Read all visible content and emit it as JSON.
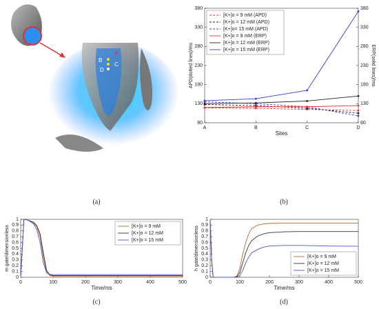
{
  "chart_data": [
    {
      "type": "image",
      "caption": "(a)",
      "labels": [
        "A",
        "B",
        "C",
        "D"
      ]
    },
    {
      "type": "line",
      "caption": "(b)",
      "categories": [
        "A",
        "B",
        "C",
        "D"
      ],
      "xlabel": "Sites",
      "ylabel": "APD(dotted lines)/ms",
      "y2label": "ERP(solid lines)/ms",
      "ylim": [
        80,
        380
      ],
      "yticks": [
        80,
        130,
        180,
        230,
        280,
        330,
        380
      ],
      "y2lim": [
        80,
        380
      ],
      "y2ticks": [
        80,
        130,
        180,
        230,
        280,
        330,
        380
      ],
      "legend": "upper left",
      "series": [
        {
          "name": "[K+]o = 9 mM (APD)",
          "color": "#e83030",
          "dashed": true,
          "values": [
            119,
            118,
            115,
            112
          ]
        },
        {
          "name": "[K+]o = 12 mM (APD)",
          "color": "#222222",
          "dashed": true,
          "values": [
            128,
            125,
            118,
            105
          ]
        },
        {
          "name": "[K+]o= 15 mM (APD)",
          "color": "#3a3ad0",
          "dashed": true,
          "values": [
            135,
            130,
            122,
            98
          ]
        },
        {
          "name": "[K+]o = 9 mM (ERP)",
          "color": "#e83030",
          "dashed": false,
          "axis": "y2",
          "values": [
            120,
            122,
            122,
            125
          ]
        },
        {
          "name": "[K+]o = 12 mM (ERP)",
          "color": "#222222",
          "dashed": false,
          "axis": "y2",
          "values": [
            130,
            132,
            137,
            150
          ]
        },
        {
          "name": "[K+]o = 15 mM (ERP)",
          "color": "#3a3ad0",
          "dashed": false,
          "axis": "y2",
          "values": [
            138,
            143,
            165,
            372
          ]
        }
      ]
    },
    {
      "type": "line",
      "caption": "(c)",
      "xlabel": "Time/ms",
      "ylabel": "m gate/dimensionless",
      "xlim": [
        0,
        500
      ],
      "xticks": [
        0,
        100,
        200,
        300,
        400,
        500
      ],
      "ylim": [
        0,
        1
      ],
      "yticks": [
        0,
        0.1,
        0.2,
        0.3,
        0.4,
        0.5,
        0.6,
        0.7,
        0.8,
        0.9,
        1
      ],
      "legend": "upper right",
      "x": [
        0,
        5,
        10,
        20,
        30,
        40,
        50,
        60,
        70,
        80,
        90,
        100,
        120,
        200,
        300,
        400,
        500
      ],
      "series": [
        {
          "name": "[K+]o = 9 mM",
          "color": "#b8672e",
          "values": [
            0,
            0.5,
            1,
            0.99,
            0.97,
            0.94,
            0.87,
            0.7,
            0.35,
            0.09,
            0.03,
            0.02,
            0.02,
            0.02,
            0.02,
            0.02,
            0.02
          ]
        },
        {
          "name": "[K+]o = 12 mM",
          "color": "#333333",
          "values": [
            0,
            0.5,
            1,
            0.99,
            0.97,
            0.95,
            0.89,
            0.75,
            0.42,
            0.12,
            0.04,
            0.03,
            0.03,
            0.03,
            0.03,
            0.03,
            0.03
          ]
        },
        {
          "name": "[K+]o = 15 mM",
          "color": "#5050d0",
          "values": [
            0,
            0.5,
            1,
            0.99,
            0.96,
            0.92,
            0.82,
            0.6,
            0.25,
            0.08,
            0.05,
            0.045,
            0.045,
            0.045,
            0.045,
            0.045,
            0.045
          ]
        }
      ]
    },
    {
      "type": "line",
      "caption": "(d)",
      "xlabel": "Time/ms",
      "ylabel": "h gate/dimensionless",
      "xlim": [
        0,
        500
      ],
      "xticks": [
        0,
        100,
        200,
        300,
        400,
        500
      ],
      "ylim": [
        0,
        1
      ],
      "yticks": [
        0,
        0.1,
        0.2,
        0.3,
        0.4,
        0.5,
        0.6,
        0.7,
        0.8,
        0.9,
        1
      ],
      "legend": "lower right",
      "x": [
        0,
        5,
        10,
        80,
        90,
        100,
        110,
        120,
        130,
        140,
        160,
        180,
        200,
        250,
        300,
        400,
        500
      ],
      "series": [
        {
          "name": "[K+]o = 9 mM",
          "color": "#b8672e",
          "values": [
            0.98,
            0.3,
            0,
            0,
            0.02,
            0.15,
            0.4,
            0.6,
            0.75,
            0.84,
            0.9,
            0.92,
            0.93,
            0.935,
            0.935,
            0.935,
            0.935
          ]
        },
        {
          "name": "[K+]o = 12 mM",
          "color": "#333333",
          "values": [
            0.98,
            0.3,
            0,
            0,
            0.01,
            0.08,
            0.25,
            0.42,
            0.55,
            0.63,
            0.71,
            0.75,
            0.77,
            0.785,
            0.79,
            0.79,
            0.79
          ]
        },
        {
          "name": "[K+]o = 15 mM",
          "color": "#5050d0",
          "values": [
            0.98,
            0.3,
            0,
            0,
            0,
            0.03,
            0.12,
            0.25,
            0.35,
            0.42,
            0.48,
            0.52,
            0.54,
            0.55,
            0.55,
            0.54,
            0.535
          ]
        }
      ]
    }
  ]
}
